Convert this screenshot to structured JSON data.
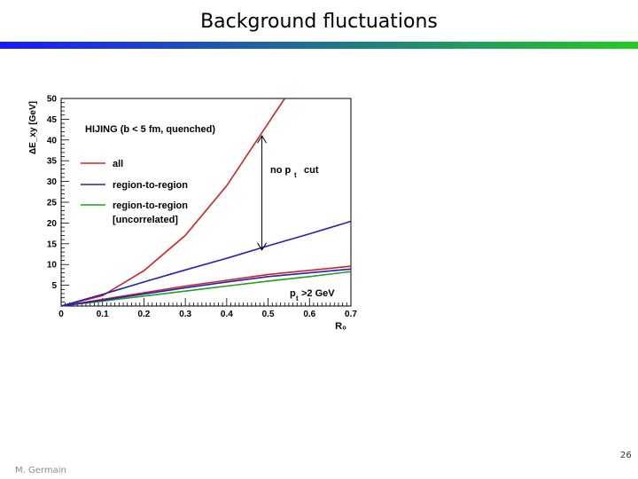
{
  "slide": {
    "title": "Background fluctuations",
    "author": "M. Germain",
    "page_number": "26"
  },
  "colors": {
    "title_bar_start": "#1a1aff",
    "title_bar_end": "#22cc22"
  },
  "chart_data": {
    "type": "line",
    "xlabel": "R₀",
    "ylabel": "ΔE_xy [GeV]",
    "xlim": [
      0,
      0.7
    ],
    "ylim": [
      0,
      50
    ],
    "xticks": [
      "0",
      "0.1",
      "0.2",
      "0.3",
      "0.4",
      "0.5",
      "0.6",
      "0.7"
    ],
    "yticks": [
      "5",
      "10",
      "15",
      "20",
      "25",
      "30",
      "35",
      "40",
      "45",
      "50"
    ],
    "legend_title": "HIJING (b < 5 fm, quenched)",
    "legend_placement": "top-left",
    "series": [
      {
        "name": "all",
        "color": "#d42020",
        "x": [
          0,
          0.1,
          0.2,
          0.3,
          0.4,
          0.5,
          0.54
        ],
        "y": [
          0,
          2.5,
          8.5,
          17,
          29,
          44,
          50
        ]
      },
      {
        "name": "region-to-region",
        "color": "#2020c0",
        "x": [
          0,
          0.1,
          0.2,
          0.3,
          0.4,
          0.5,
          0.6,
          0.7
        ],
        "y": [
          0,
          2.8,
          5.8,
          8.7,
          11.5,
          14.5,
          17.4,
          20.4
        ]
      },
      {
        "name": "region-to-region [uncorrelated]",
        "color": "#20a020",
        "x": [
          0,
          0.1,
          0.2,
          0.3,
          0.4,
          0.5,
          0.6,
          0.7
        ],
        "y": [
          0,
          1.2,
          2.4,
          3.6,
          4.8,
          6.0,
          7.1,
          8.3
        ]
      },
      {
        "color": "#d42020",
        "x": [
          0,
          0.1,
          0.2,
          0.3,
          0.4,
          0.5,
          0.6,
          0.7
        ],
        "y": [
          0,
          1.6,
          3.2,
          4.8,
          6.2,
          7.6,
          8.6,
          9.6
        ]
      },
      {
        "color": "#2020c0",
        "x": [
          0,
          0.1,
          0.2,
          0.3,
          0.4,
          0.5,
          0.6,
          0.7
        ],
        "y": [
          0,
          1.4,
          2.9,
          4.4,
          5.8,
          7.1,
          8.0,
          8.9
        ]
      }
    ],
    "annotations": {
      "no_pt_cut": "no p",
      "no_pt_cut_sub": "t",
      "no_pt_cut_suffix": "cut",
      "pt_cut_prefix": "p",
      "pt_cut_sub": "t",
      "pt_cut_suffix": ">2  GeV",
      "arrow_at_x": 0.485,
      "arrow_from_y": 41,
      "arrow_to_y": 13.5
    }
  }
}
